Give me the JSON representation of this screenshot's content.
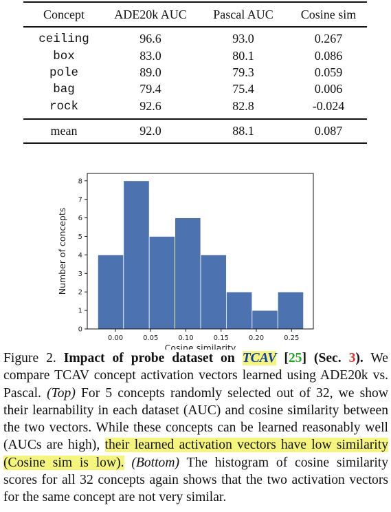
{
  "table": {
    "headers": [
      "Concept",
      "ADE20k AUC",
      "Pascal AUC",
      "Cosine sim"
    ],
    "rows": [
      {
        "concept": "ceiling",
        "ade20k_auc": "96.6",
        "pascal_auc": "93.0",
        "cosine_sim": "0.267"
      },
      {
        "concept": "box",
        "ade20k_auc": "83.0",
        "pascal_auc": "80.1",
        "cosine_sim": "0.086"
      },
      {
        "concept": "pole",
        "ade20k_auc": "89.0",
        "pascal_auc": "79.3",
        "cosine_sim": "0.059"
      },
      {
        "concept": "bag",
        "ade20k_auc": "79.4",
        "pascal_auc": "75.4",
        "cosine_sim": "0.006"
      },
      {
        "concept": "rock",
        "ade20k_auc": "92.6",
        "pascal_auc": "82.8",
        "cosine_sim": "-0.024"
      }
    ],
    "mean": {
      "label": "mean",
      "ade20k_auc": "92.0",
      "pascal_auc": "88.1",
      "cosine_sim": "0.087"
    }
  },
  "chart_data": {
    "type": "bar",
    "title": "",
    "xlabel": "Cosine similarity",
    "ylabel": "Number of concepts",
    "bin_edges": [
      -0.025,
      0.0115,
      0.048,
      0.0845,
      0.121,
      0.1575,
      0.194,
      0.2305,
      0.267
    ],
    "values": [
      4,
      8,
      5,
      6,
      4,
      2,
      1,
      2
    ],
    "xticks": [
      "0.00",
      "0.05",
      "0.10",
      "0.15",
      "0.20",
      "0.25"
    ],
    "yticks": [
      "0",
      "1",
      "2",
      "3",
      "4",
      "5",
      "6",
      "7",
      "8"
    ],
    "xlim": [
      -0.04,
      0.281
    ],
    "ylim": [
      0,
      8.4
    ],
    "bar_color": "#4c72b0",
    "grid": false
  },
  "caption": {
    "figure_label": "Figure 2.",
    "title_bold_pre": "Impact of probe dataset on",
    "title_method": "TCAV",
    "title_cite_open": "[",
    "title_cite_num": "25",
    "title_cite_close": "]",
    "title_sec_open": "(Sec.",
    "title_sec_num": "3",
    "title_sec_close": ").",
    "text1": "We compare TCAV concept activation vectors learned using ADE20k vs. Pascal.",
    "top_label": "(Top)",
    "text2": "For 5 concepts randomly selected out of 32, we show their learnability in each dataset (AUC) and cosine similarity between the two vectors. While these concepts can be learned reasonably well (AUCs are high),",
    "highlight": "their learned activation vectors have low similarity (Cosine sim is low).",
    "bottom_label": "(Bottom)",
    "text3": "The histogram of cosine similarity scores for all 32 concepts again shows that the two activation vectors for the same concept are not very similar."
  }
}
